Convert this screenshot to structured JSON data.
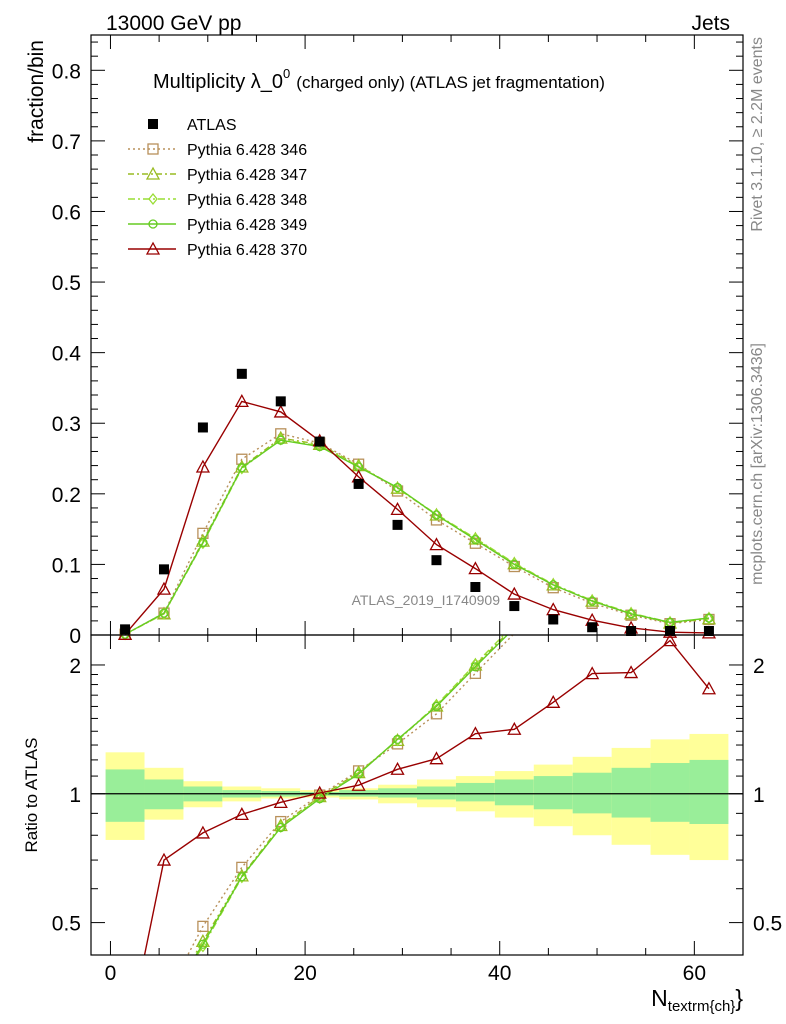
{
  "header": {
    "left": "13000 GeV pp",
    "right": "Jets"
  },
  "side_text": {
    "rivet": "Rivet 3.1.10, ≥ 2.2M events",
    "mcplots": "mcplots.cern.ch [arXiv:1306.3436]"
  },
  "chart_data": {
    "type": "scatter",
    "title": "Multiplicity λ_0",
    "title_sup": "0",
    "title_suffix": "(charged only) (ATLAS jet fragmentation)",
    "xlabel": "N",
    "xlabel_sub": "textrm{ch}",
    "xlabel_close": "}",
    "ylabel": "fraction/bin",
    "ratio_ylabel": "Ratio to ATLAS",
    "watermark": "ATLAS_2019_I1740909",
    "xlim": [
      -2,
      65
    ],
    "ylim": [
      0,
      0.85
    ],
    "ratio_ylim": [
      0.42,
      2.35
    ],
    "ratio_scale": "log",
    "x_ticks": [
      "0",
      "20",
      "40",
      "60"
    ],
    "y_ticks": [
      "0",
      "0.1",
      "0.2",
      "0.3",
      "0.4",
      "0.5",
      "0.6",
      "0.7",
      "0.8"
    ],
    "ratio_ticks": [
      "0.5",
      "1",
      "2"
    ],
    "x": [
      1.5,
      5.5,
      9.5,
      13.5,
      17.5,
      21.5,
      25.5,
      29.5,
      33.5,
      37.5,
      41.5,
      45.5,
      49.5,
      53.5,
      57.5,
      61.5
    ],
    "bins": [
      [
        -0.5,
        3.5
      ],
      [
        3.5,
        7.5
      ],
      [
        7.5,
        11.5
      ],
      [
        11.5,
        15.5
      ],
      [
        15.5,
        19.5
      ],
      [
        19.5,
        23.5
      ],
      [
        23.5,
        27.5
      ],
      [
        27.5,
        31.5
      ],
      [
        31.5,
        35.5
      ],
      [
        35.5,
        39.5
      ],
      [
        39.5,
        43.5
      ],
      [
        43.5,
        47.5
      ],
      [
        47.5,
        51.5
      ],
      [
        51.5,
        55.5
      ],
      [
        55.5,
        59.5
      ],
      [
        59.5,
        63.5
      ]
    ],
    "data": {
      "name": "ATLAS",
      "values": [
        0.008,
        0.093,
        0.294,
        0.37,
        0.331,
        0.274,
        0.214,
        0.156,
        0.106,
        0.068,
        0.041,
        0.022,
        0.011,
        0.005,
        0.003,
        0.003
      ],
      "band_inner": [
        [
          0.86,
          1.14
        ],
        [
          0.92,
          1.08
        ],
        [
          0.96,
          1.04
        ],
        [
          0.98,
          1.02
        ],
        [
          0.985,
          1.015
        ],
        [
          0.99,
          1.01
        ],
        [
          0.985,
          1.02
        ],
        [
          0.98,
          1.03
        ],
        [
          0.97,
          1.04
        ],
        [
          0.96,
          1.06
        ],
        [
          0.94,
          1.08
        ],
        [
          0.92,
          1.1
        ],
        [
          0.9,
          1.12
        ],
        [
          0.88,
          1.15
        ],
        [
          0.86,
          1.18
        ],
        [
          0.85,
          1.2
        ]
      ],
      "band_outer": [
        [
          0.78,
          1.25
        ],
        [
          0.87,
          1.15
        ],
        [
          0.93,
          1.07
        ],
        [
          0.96,
          1.04
        ],
        [
          0.975,
          1.03
        ],
        [
          0.98,
          1.02
        ],
        [
          0.97,
          1.03
        ],
        [
          0.95,
          1.05
        ],
        [
          0.93,
          1.08
        ],
        [
          0.91,
          1.1
        ],
        [
          0.88,
          1.13
        ],
        [
          0.84,
          1.17
        ],
        [
          0.8,
          1.22
        ],
        [
          0.76,
          1.28
        ],
        [
          0.72,
          1.34
        ],
        [
          0.7,
          1.38
        ]
      ]
    },
    "series": [
      {
        "name": "Pythia 6.428 346",
        "color": "#b8905a",
        "marker": "square",
        "dash": "2,3",
        "values": [
          0.001,
          0.031,
          0.144,
          0.249,
          0.285,
          0.272,
          0.242,
          0.204,
          0.163,
          0.13,
          0.097,
          0.067,
          0.045,
          0.028,
          0.016,
          0.022
        ],
        "ratio": [
          0.13,
          0.33,
          0.49,
          0.673,
          0.861,
          0.993,
          1.131,
          1.308,
          1.538,
          1.912,
          2.37,
          null,
          null,
          null,
          null,
          null
        ]
      },
      {
        "name": "Pythia 6.428 347",
        "color": "#99bb22",
        "marker": "triangle",
        "dash": "6,3,2,3",
        "values": [
          0.001,
          0.03,
          0.133,
          0.238,
          0.279,
          0.27,
          0.24,
          0.208,
          0.17,
          0.136,
          0.101,
          0.071,
          0.048,
          0.03,
          0.017,
          0.023
        ],
        "ratio": [
          0.12,
          0.32,
          0.452,
          0.643,
          0.843,
          0.985,
          1.121,
          1.333,
          1.604,
          2.0,
          2.46,
          null,
          null,
          null,
          null,
          null
        ]
      },
      {
        "name": "Pythia 6.428 348",
        "color": "#99dd33",
        "marker": "diamond",
        "dash": "7,3,2,3",
        "values": [
          0.001,
          0.03,
          0.13,
          0.236,
          0.277,
          0.268,
          0.239,
          0.208,
          0.171,
          0.137,
          0.102,
          0.072,
          0.049,
          0.031,
          0.018,
          0.024
        ],
        "ratio": [
          0.12,
          0.32,
          0.44,
          0.638,
          0.837,
          0.978,
          1.117,
          1.333,
          1.613,
          2.01,
          2.49,
          null,
          null,
          null,
          null,
          null
        ]
      },
      {
        "name": "Pythia 6.428 349",
        "color": "#66cc22",
        "marker": "circle",
        "dash": "",
        "values": [
          0.001,
          0.031,
          0.131,
          0.237,
          0.276,
          0.267,
          0.238,
          0.209,
          0.17,
          0.135,
          0.1,
          0.071,
          0.048,
          0.03,
          0.018,
          0.024
        ],
        "ratio": [
          0.12,
          0.32,
          0.445,
          0.64,
          0.834,
          0.974,
          1.112,
          1.34,
          1.6,
          1.98,
          2.44,
          null,
          null,
          null,
          null,
          null
        ]
      },
      {
        "name": "Pythia 6.428 370",
        "color": "#990000",
        "marker": "triangle",
        "dash": "",
        "values": [
          0.001,
          0.065,
          0.238,
          0.331,
          0.316,
          0.275,
          0.224,
          0.178,
          0.128,
          0.094,
          0.058,
          0.036,
          0.021,
          0.01,
          0.004,
          0.003
        ],
        "ratio": [
          0.12,
          0.7,
          0.81,
          0.895,
          0.955,
          1.004,
          1.047,
          1.141,
          1.208,
          1.382,
          1.415,
          1.636,
          1.909,
          1.92,
          2.28,
          1.76
        ]
      }
    ]
  }
}
